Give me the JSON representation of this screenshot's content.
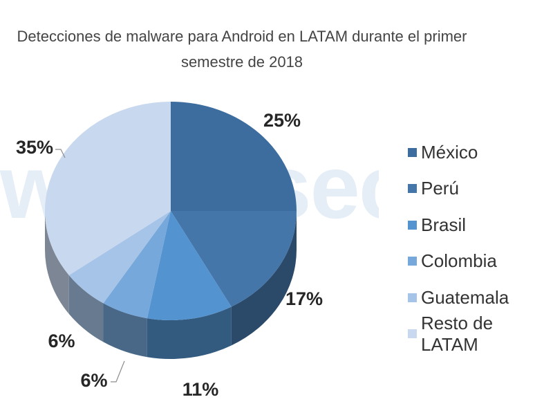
{
  "title_lines": [
    "Detecciones de malware para Android en LATAM durante el primer",
    "semestre de 2018"
  ],
  "watermark": "welivesecurity",
  "colors": {
    "México": "#3c6d9e",
    "Perú": "#4576aa",
    "Brasil": "#5393cf",
    "Colombia": "#76a8db",
    "Guatemala": "#a6c4e8",
    "Resto de LATAM": "#c8d8ef"
  },
  "chart_data": {
    "type": "pie",
    "title": "Detecciones de malware para Android en LATAM durante el primer semestre de 2018",
    "labels": [
      "México",
      "Perú",
      "Brasil",
      "Colombia",
      "Guatemala",
      "Resto de LATAM"
    ],
    "values": [
      25,
      17,
      11,
      6,
      6,
      35
    ],
    "value_labels": [
      "25%",
      "17%",
      "11%",
      "6%",
      "6%",
      "35%"
    ],
    "legend_position": "right"
  }
}
